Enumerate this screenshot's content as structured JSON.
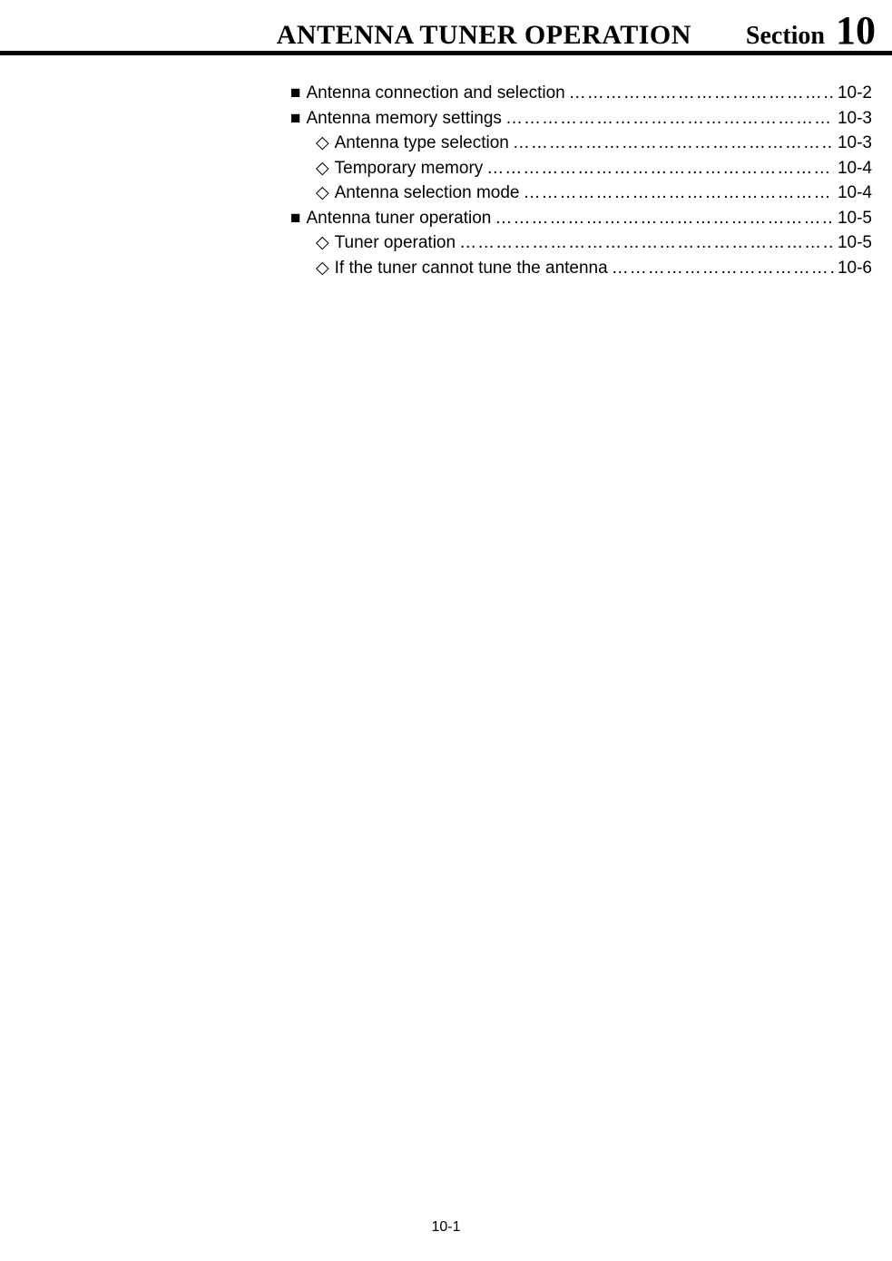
{
  "header": {
    "title": "ANTENNA TUNER OPERATION",
    "section_label": "Section",
    "section_number": "10"
  },
  "toc": [
    {
      "level": 1,
      "text": "Antenna connection and selection",
      "page": "10-2"
    },
    {
      "level": 1,
      "text": "Antenna memory settings",
      "page": "10-3"
    },
    {
      "level": 2,
      "text": "Antenna type selection",
      "page": "10-3"
    },
    {
      "level": 2,
      "text": "Temporary memory",
      "page": "10-4"
    },
    {
      "level": 2,
      "text": "Antenna selection mode",
      "page": "10-4"
    },
    {
      "level": 1,
      "text": "Antenna tuner operation",
      "page": "10-5"
    },
    {
      "level": 2,
      "text": "Tuner operation",
      "page": "10-5"
    },
    {
      "level": 2,
      "text": "If the tuner cannot tune the antenna",
      "page": "10-6"
    }
  ],
  "bullets": {
    "level1": "■",
    "level2": "◇"
  },
  "footer": {
    "page_number": "10-1"
  }
}
